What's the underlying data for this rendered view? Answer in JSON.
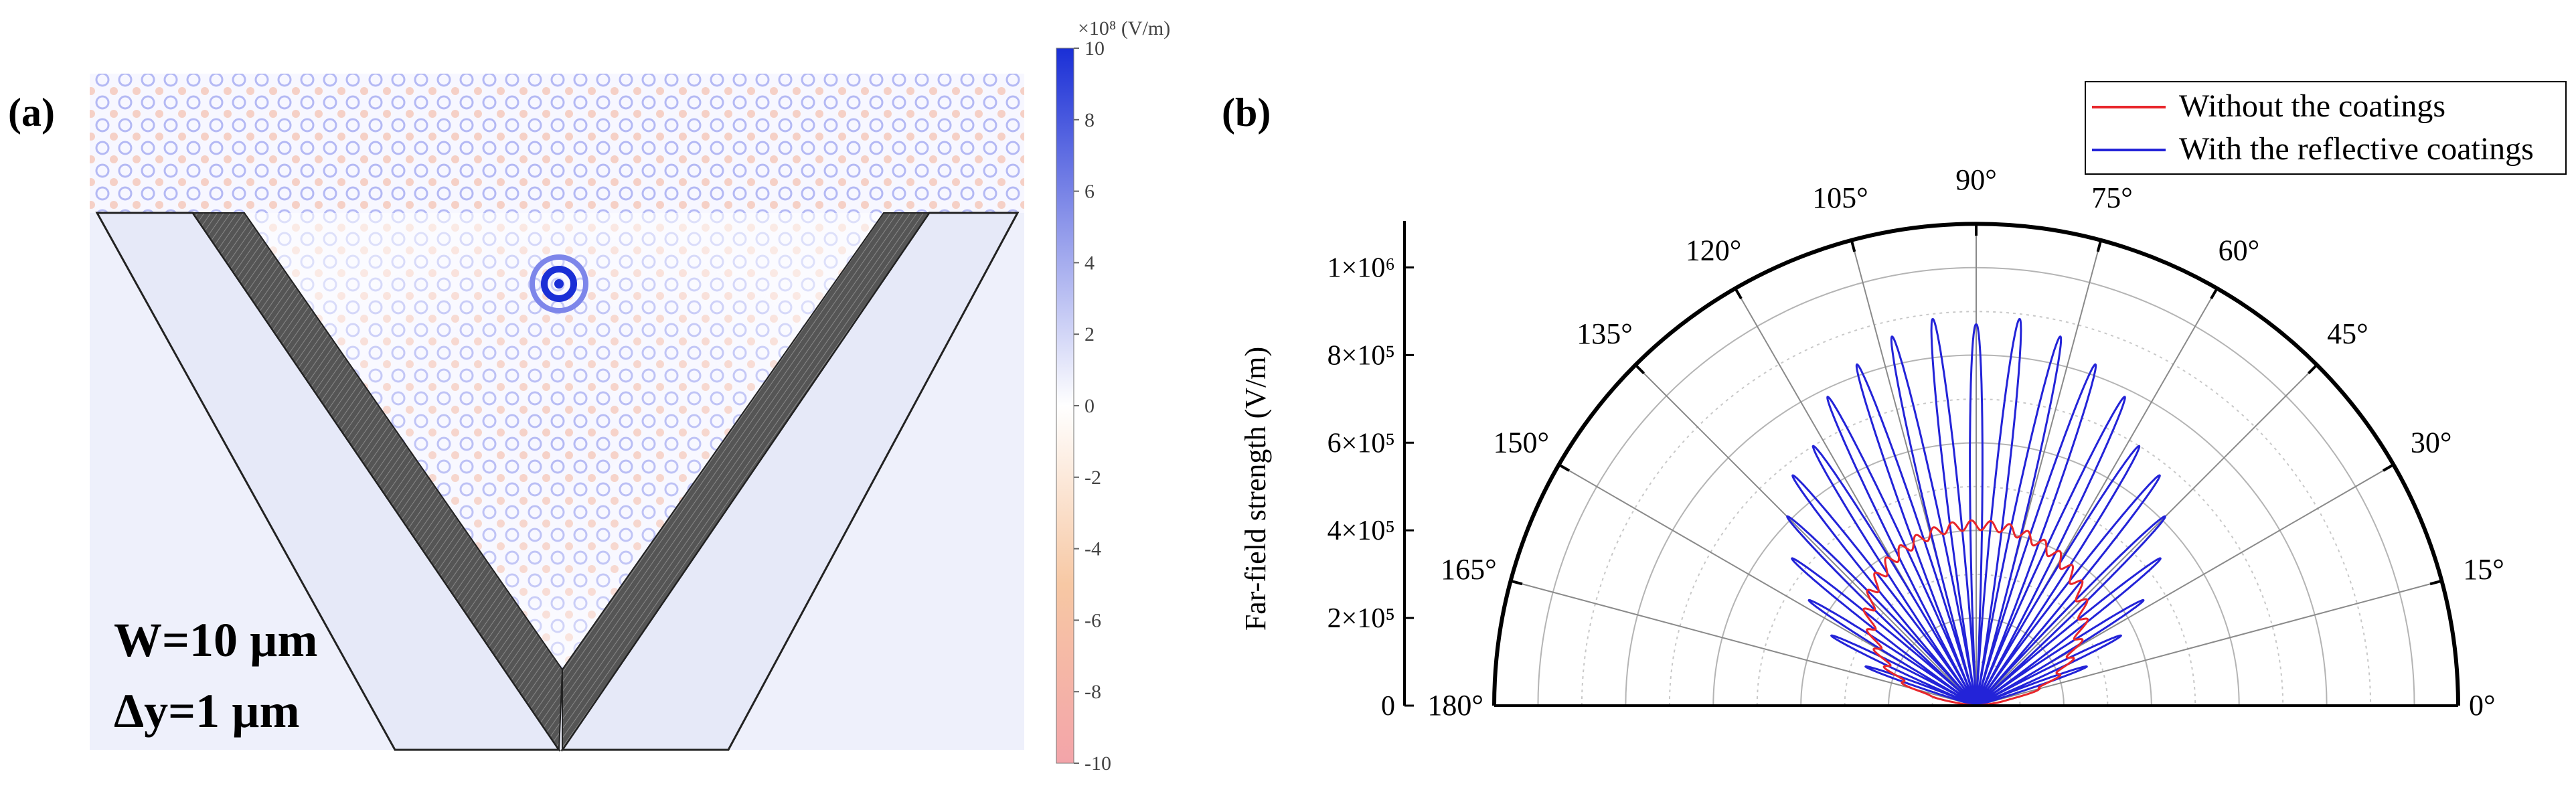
{
  "panel_a": {
    "label": "(a)",
    "param_w": "W=10 µm",
    "param_dy": "Δy=1 µm",
    "colorbar": {
      "exponent_label": "×10⁸ (V/m)",
      "ticks": [
        "10",
        "8",
        "6",
        "4",
        "2",
        "0",
        "-2",
        "-4",
        "-6",
        "-8",
        "-10"
      ],
      "max_color": "#1a2fd6",
      "mid_color": "#ffffff",
      "min_color": "#f3a4a9"
    }
  },
  "panel_b": {
    "label": "(b)",
    "ylabel": "Far-field strength (V/m)",
    "radial_ticks": [
      "0",
      "2×10⁵",
      "4×10⁵",
      "6×10⁵",
      "8×10⁵",
      "1×10⁶"
    ],
    "angle_labels": [
      "0°",
      "15°",
      "30°",
      "45°",
      "60°",
      "75°",
      "90°",
      "105°",
      "120°",
      "135°",
      "150°",
      "165°",
      "180°"
    ],
    "legend": {
      "red": "Without the coatings",
      "blue": "With the reflective coatings"
    }
  },
  "chart_data": {
    "type": "polar-line",
    "title": "",
    "theta_unit": "deg",
    "theta_range": [
      0,
      180
    ],
    "r_range": [
      0,
      1100000
    ],
    "r_ticks": [
      0,
      200000,
      400000,
      600000,
      800000,
      1000000
    ],
    "theta_ticks": [
      0,
      15,
      30,
      45,
      60,
      75,
      90,
      105,
      120,
      135,
      150,
      165,
      180
    ],
    "series": [
      {
        "name": "Without the coatings",
        "color": "#e8262b",
        "description": "smooth envelope with small ripple",
        "theta": [
          5,
          15,
          22,
          30,
          40,
          50,
          60,
          70,
          80,
          90,
          100,
          110,
          120,
          130,
          140,
          150,
          158,
          165,
          175
        ],
        "r": [
          0,
          150000,
          210000,
          260000,
          320000,
          360000,
          385000,
          400000,
          410000,
          412000,
          410000,
          400000,
          385000,
          360000,
          320000,
          260000,
          210000,
          150000,
          0
        ]
      },
      {
        "name": "With the reflective coatings",
        "color": "#2323d8",
        "description": "multi-lobe pattern; peak values per lobe",
        "theta": [
          16,
          22,
          30,
          37,
          44,
          51,
          58,
          64,
          70,
          76,
          82,
          86,
          90,
          94,
          98,
          104,
          110,
          116,
          122,
          129,
          136,
          143,
          150,
          158,
          164
        ],
        "r": [
          200000,
          320000,
          420000,
          520000,
          600000,
          670000,
          700000,
          780000,
          820000,
          860000,
          880000,
          900000,
          870000,
          900000,
          880000,
          860000,
          820000,
          780000,
          700000,
          670000,
          600000,
          520000,
          420000,
          320000,
          200000
        ]
      }
    ]
  }
}
